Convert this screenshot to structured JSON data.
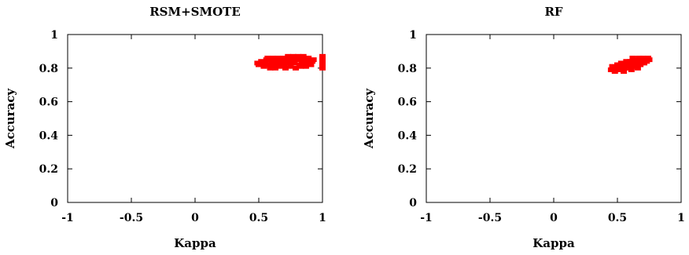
{
  "chart_data": [
    {
      "type": "scatter",
      "title": "RSM+SMOTE",
      "xlabel": "Kappa",
      "ylabel": "Accuracy",
      "xlim": [
        -1,
        1
      ],
      "ylim": [
        0,
        1
      ],
      "xticks": [
        "-1",
        "-0.5",
        "0",
        "0.5",
        "1"
      ],
      "yticks": [
        "0",
        "0.2",
        "0.4",
        "0.6",
        "0.8",
        "1"
      ],
      "grid": false,
      "marker_color": "#ff0000",
      "points": [
        {
          "x": 0.49,
          "y": 0.83
        },
        {
          "x": 0.5,
          "y": 0.82
        },
        {
          "x": 0.52,
          "y": 0.84
        },
        {
          "x": 0.54,
          "y": 0.81
        },
        {
          "x": 0.55,
          "y": 0.83
        },
        {
          "x": 0.56,
          "y": 0.85
        },
        {
          "x": 0.58,
          "y": 0.82
        },
        {
          "x": 0.59,
          "y": 0.8
        },
        {
          "x": 0.6,
          "y": 0.84
        },
        {
          "x": 0.61,
          "y": 0.86
        },
        {
          "x": 0.62,
          "y": 0.82
        },
        {
          "x": 0.63,
          "y": 0.8
        },
        {
          "x": 0.64,
          "y": 0.84
        },
        {
          "x": 0.65,
          "y": 0.86
        },
        {
          "x": 0.66,
          "y": 0.82
        },
        {
          "x": 0.67,
          "y": 0.81
        },
        {
          "x": 0.68,
          "y": 0.84
        },
        {
          "x": 0.69,
          "y": 0.86
        },
        {
          "x": 0.7,
          "y": 0.82
        },
        {
          "x": 0.71,
          "y": 0.8
        },
        {
          "x": 0.72,
          "y": 0.85
        },
        {
          "x": 0.73,
          "y": 0.87
        },
        {
          "x": 0.74,
          "y": 0.83
        },
        {
          "x": 0.75,
          "y": 0.81
        },
        {
          "x": 0.76,
          "y": 0.85
        },
        {
          "x": 0.77,
          "y": 0.87
        },
        {
          "x": 0.78,
          "y": 0.83
        },
        {
          "x": 0.79,
          "y": 0.8
        },
        {
          "x": 0.8,
          "y": 0.85
        },
        {
          "x": 0.81,
          "y": 0.87
        },
        {
          "x": 0.82,
          "y": 0.82
        },
        {
          "x": 0.83,
          "y": 0.81
        },
        {
          "x": 0.84,
          "y": 0.85
        },
        {
          "x": 0.85,
          "y": 0.87
        },
        {
          "x": 0.86,
          "y": 0.83
        },
        {
          "x": 0.87,
          "y": 0.81
        },
        {
          "x": 0.88,
          "y": 0.85
        },
        {
          "x": 0.89,
          "y": 0.86
        },
        {
          "x": 0.9,
          "y": 0.83
        },
        {
          "x": 0.91,
          "y": 0.82
        },
        {
          "x": 0.92,
          "y": 0.84
        },
        {
          "x": 0.93,
          "y": 0.85
        },
        {
          "x": 0.6,
          "y": 0.83
        },
        {
          "x": 0.66,
          "y": 0.84
        },
        {
          "x": 0.72,
          "y": 0.83
        },
        {
          "x": 0.78,
          "y": 0.84
        },
        {
          "x": 0.84,
          "y": 0.83
        },
        {
          "x": 0.53,
          "y": 0.82
        },
        {
          "x": 0.57,
          "y": 0.86
        },
        {
          "x": 0.88,
          "y": 0.82
        },
        {
          "x": 1.0,
          "y": 0.8
        },
        {
          "x": 1.0,
          "y": 0.81
        },
        {
          "x": 1.0,
          "y": 0.82
        },
        {
          "x": 1.0,
          "y": 0.83
        },
        {
          "x": 1.0,
          "y": 0.84
        },
        {
          "x": 1.0,
          "y": 0.85
        },
        {
          "x": 1.0,
          "y": 0.86
        },
        {
          "x": 1.0,
          "y": 0.87
        }
      ]
    },
    {
      "type": "scatter",
      "title": "RF",
      "xlabel": "Kappa",
      "ylabel": "Accuracy",
      "xlim": [
        -1,
        1
      ],
      "ylim": [
        0,
        1
      ],
      "xticks": [
        "-1",
        "-0.5",
        "0",
        "0.5",
        "1"
      ],
      "yticks": [
        "0",
        "0.2",
        "0.4",
        "0.6",
        "0.8",
        "1"
      ],
      "grid": false,
      "marker_color": "#ff0000",
      "points": [
        {
          "x": 0.45,
          "y": 0.79
        },
        {
          "x": 0.46,
          "y": 0.81
        },
        {
          "x": 0.48,
          "y": 0.78
        },
        {
          "x": 0.49,
          "y": 0.8
        },
        {
          "x": 0.5,
          "y": 0.82
        },
        {
          "x": 0.51,
          "y": 0.79
        },
        {
          "x": 0.52,
          "y": 0.81
        },
        {
          "x": 0.53,
          "y": 0.83
        },
        {
          "x": 0.54,
          "y": 0.8
        },
        {
          "x": 0.55,
          "y": 0.78
        },
        {
          "x": 0.56,
          "y": 0.82
        },
        {
          "x": 0.57,
          "y": 0.84
        },
        {
          "x": 0.58,
          "y": 0.8
        },
        {
          "x": 0.59,
          "y": 0.82
        },
        {
          "x": 0.6,
          "y": 0.84
        },
        {
          "x": 0.61,
          "y": 0.79
        },
        {
          "x": 0.62,
          "y": 0.81
        },
        {
          "x": 0.63,
          "y": 0.83
        },
        {
          "x": 0.64,
          "y": 0.85
        },
        {
          "x": 0.65,
          "y": 0.81
        },
        {
          "x": 0.66,
          "y": 0.83
        },
        {
          "x": 0.67,
          "y": 0.86
        },
        {
          "x": 0.68,
          "y": 0.82
        },
        {
          "x": 0.69,
          "y": 0.84
        },
        {
          "x": 0.7,
          "y": 0.86
        },
        {
          "x": 0.71,
          "y": 0.83
        },
        {
          "x": 0.72,
          "y": 0.85
        },
        {
          "x": 0.73,
          "y": 0.84
        },
        {
          "x": 0.74,
          "y": 0.86
        },
        {
          "x": 0.75,
          "y": 0.85
        },
        {
          "x": 0.56,
          "y": 0.8
        },
        {
          "x": 0.6,
          "y": 0.81
        },
        {
          "x": 0.64,
          "y": 0.82
        },
        {
          "x": 0.68,
          "y": 0.85
        },
        {
          "x": 0.52,
          "y": 0.79
        },
        {
          "x": 0.58,
          "y": 0.83
        },
        {
          "x": 0.62,
          "y": 0.86
        },
        {
          "x": 0.66,
          "y": 0.8
        },
        {
          "x": 0.47,
          "y": 0.8
        },
        {
          "x": 0.7,
          "y": 0.84
        }
      ]
    }
  ]
}
